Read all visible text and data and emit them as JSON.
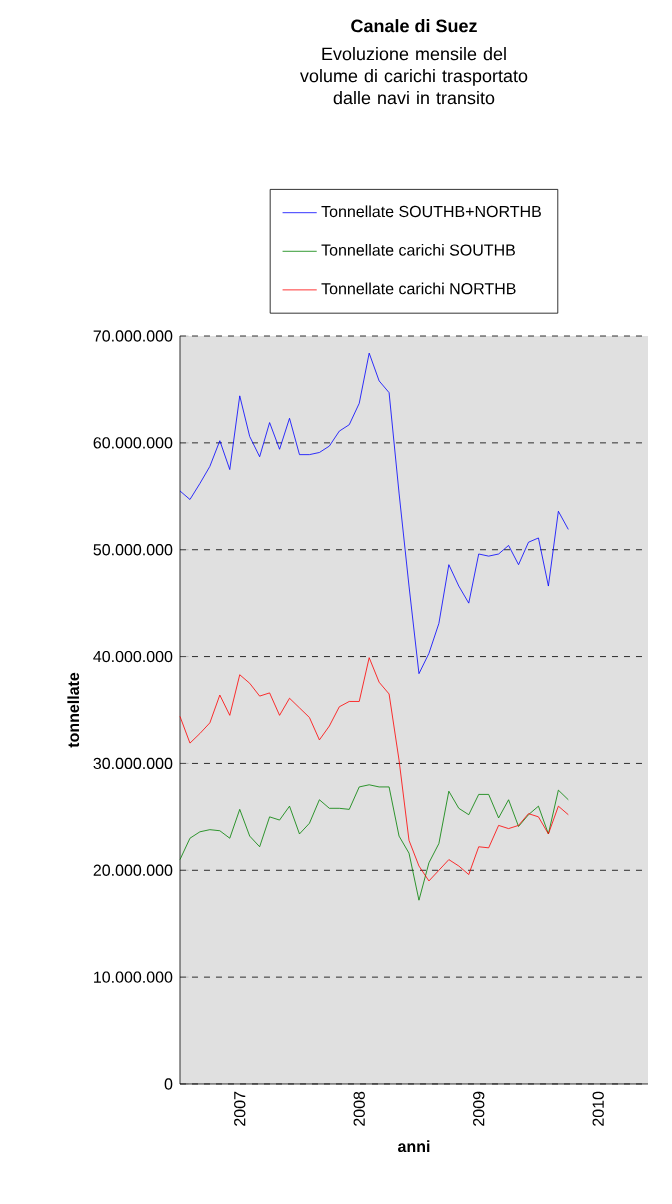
{
  "chart_data": {
    "type": "line",
    "title": "Canale di Suez",
    "subtitle": "Evoluzione mensile del volume di carichi trasportato dalle navi in transito",
    "xlabel": "anni",
    "ylabel": "tonnellate",
    "categories": [
      null,
      null,
      null,
      null,
      null,
      null,
      "2007",
      null,
      null,
      null,
      null,
      null,
      null,
      null,
      null,
      null,
      null,
      null,
      "2008",
      null,
      null,
      null,
      null,
      null,
      null,
      null,
      null,
      null,
      null,
      null,
      "2009",
      null,
      null,
      null,
      null,
      null,
      null,
      null,
      null,
      null,
      null,
      null,
      "2010",
      null,
      null,
      null,
      null,
      null
    ],
    "series": [
      {
        "name": "Tonnellate SOUTHB+NORTHB",
        "color": "#0000ff",
        "values": [
          55500000,
          54700000,
          56200000,
          57800000,
          60200000,
          57500000,
          64400000,
          60600000,
          58700000,
          61900000,
          59400000,
          62300000,
          58900000,
          58900000,
          59100000,
          59700000,
          61100000,
          61700000,
          63700000,
          68400000,
          65800000,
          64700000,
          55300000,
          46600000,
          38400000,
          40300000,
          43100000,
          48600000,
          46600000,
          45000000,
          49600000,
          49400000,
          49600000,
          50400000,
          48600000,
          50700000,
          51100000,
          46600000,
          53600000,
          51900000,
          null,
          null,
          null,
          null,
          null,
          null,
          null,
          null
        ]
      },
      {
        "name": "Tonnellate carichi SOUTHB",
        "color": "#008000",
        "values": [
          21000000,
          23000000,
          23600000,
          23800000,
          23700000,
          23000000,
          25700000,
          23200000,
          22200000,
          25000000,
          24700000,
          26000000,
          23400000,
          24400000,
          26600000,
          25800000,
          25800000,
          25700000,
          27800000,
          28000000,
          27800000,
          27800000,
          23200000,
          21600000,
          17200000,
          20700000,
          22500000,
          27400000,
          25800000,
          25200000,
          27100000,
          27100000,
          24900000,
          26600000,
          24100000,
          25200000,
          26000000,
          23400000,
          27500000,
          26600000,
          null,
          null,
          null,
          null,
          null,
          null,
          null,
          null
        ]
      },
      {
        "name": "Tonnellate carichi NORTHB",
        "color": "#ff0000",
        "values": [
          34400000,
          31900000,
          32800000,
          33800000,
          36400000,
          34500000,
          38300000,
          37500000,
          36300000,
          36600000,
          34500000,
          36100000,
          35200000,
          34300000,
          32200000,
          33500000,
          35300000,
          35800000,
          35800000,
          39900000,
          37600000,
          36500000,
          30300000,
          22800000,
          20400000,
          19000000,
          20000000,
          21000000,
          20400000,
          19600000,
          22200000,
          22100000,
          24200000,
          23900000,
          24200000,
          25300000,
          25000000,
          23400000,
          26000000,
          25200000,
          null,
          null,
          null,
          null,
          null,
          null,
          null,
          null
        ]
      }
    ],
    "ylim": [
      0,
      70000000
    ],
    "yticks": [
      0,
      {
        "value": 10000000,
        "label": "10.000.000"
      },
      {
        "value": 20000000,
        "label": "20.000.000"
      },
      {
        "value": 30000000,
        "label": "30.000.000"
      },
      {
        "value": 40000000,
        "label": "40.000.000"
      },
      {
        "value": 50000000,
        "label": "50.000.000"
      },
      {
        "value": 60000000,
        "label": "60.000.000"
      },
      {
        "value": 70000000,
        "label": "70.000.000"
      }
    ],
    "grid": "y",
    "legend": "top",
    "marker": "none",
    "line_style": "solid"
  }
}
